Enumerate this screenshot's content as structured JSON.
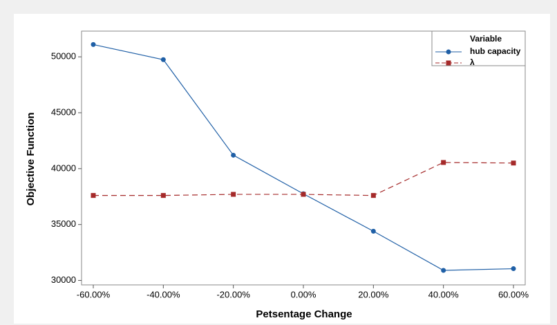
{
  "chart_data": {
    "type": "line",
    "xlabel": "Petsentage Change",
    "ylabel": "Objective Function",
    "legend_title": "Variable",
    "legend_position": "upper right",
    "categories": [
      "-60.00%",
      "-40.00%",
      "-20.00%",
      "0.00%",
      "20.00%",
      "40.00%",
      "60.00%"
    ],
    "series": [
      {
        "name": "hub capacity",
        "color": "#1f5fa6",
        "marker": "circle",
        "dash": "solid",
        "values": [
          51100,
          49750,
          41200,
          37750,
          34400,
          30900,
          31050
        ]
      },
      {
        "name": "λ",
        "color": "#a52a2a",
        "marker": "square",
        "dash": "dashed",
        "values": [
          37600,
          37600,
          37700,
          37700,
          37600,
          40550,
          40500
        ]
      }
    ],
    "ylim": [
      29600,
      52300
    ],
    "yticks": [
      30000,
      35000,
      40000,
      45000,
      50000
    ]
  }
}
